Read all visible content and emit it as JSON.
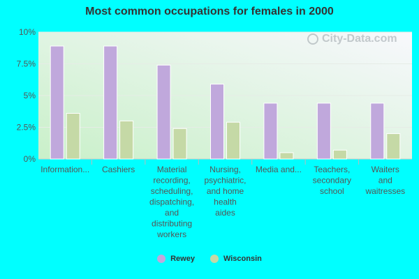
{
  "chart_data": {
    "type": "bar",
    "title": "Most common occupations for females in 2000",
    "categories": [
      [
        "Information..."
      ],
      [
        "Cashiers"
      ],
      [
        "Material",
        "recording,",
        "scheduling,",
        "dispatching,",
        "and",
        "distributing",
        "workers"
      ],
      [
        "Nursing,",
        "psychiatric,",
        "and home",
        "health",
        "aides"
      ],
      [
        "Media and..."
      ],
      [
        "Teachers,",
        "secondary",
        "school"
      ],
      [
        "Waiters",
        "and",
        "waitresses"
      ]
    ],
    "series": [
      {
        "name": "Rewey",
        "color": "#c0a8dc",
        "values": [
          8.9,
          8.9,
          7.4,
          5.9,
          4.4,
          4.4,
          4.4
        ]
      },
      {
        "name": "Wisconsin",
        "color": "#c5d9a6",
        "values": [
          3.6,
          3.0,
          2.4,
          2.9,
          0.5,
          0.7,
          2.0
        ]
      }
    ],
    "yticks": [
      "0%",
      "2.5%",
      "5%",
      "7.5%",
      "10%"
    ],
    "ylim": [
      0,
      10
    ],
    "legend_position": "bottom-center",
    "watermark": "City-Data.com"
  }
}
